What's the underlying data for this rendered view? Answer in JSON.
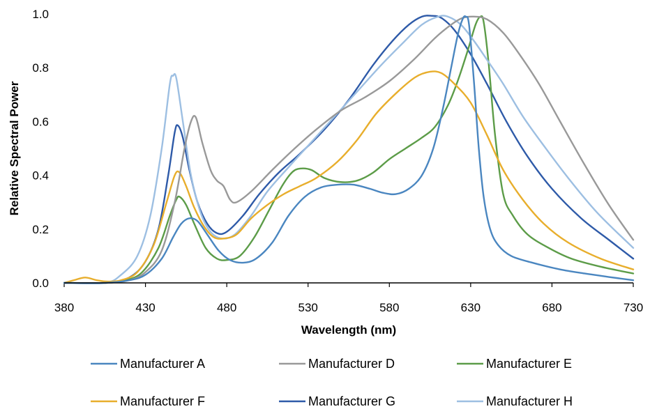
{
  "chart_data": {
    "type": "line",
    "xlabel": "Wavelength (nm)",
    "ylabel": "Relative Spectral Power",
    "xlim": [
      380,
      730
    ],
    "ylim": [
      0,
      1.0
    ],
    "x_ticks": [
      380,
      430,
      480,
      530,
      580,
      630,
      680,
      730
    ],
    "x_tick_labels": [
      "380",
      "430",
      "480",
      "530",
      "580",
      "630",
      "680",
      "730"
    ],
    "y_ticks": [
      0,
      0.2,
      0.4,
      0.6,
      0.8,
      1.0
    ],
    "y_tick_labels": [
      "0.0",
      "0.2",
      "0.4",
      "0.6",
      "0.8",
      "1.0"
    ],
    "grid": false,
    "legend_position": "bottom",
    "series": [
      {
        "name": "Manufacturer A",
        "color": "#4a86c0",
        "points": [
          [
            380,
            0
          ],
          [
            405,
            0
          ],
          [
            420,
            0.01
          ],
          [
            430,
            0.03
          ],
          [
            440,
            0.09
          ],
          [
            447,
            0.17
          ],
          [
            452,
            0.22
          ],
          [
            457,
            0.24
          ],
          [
            462,
            0.23
          ],
          [
            468,
            0.18
          ],
          [
            475,
            0.12
          ],
          [
            482,
            0.085
          ],
          [
            490,
            0.075
          ],
          [
            498,
            0.09
          ],
          [
            508,
            0.15
          ],
          [
            518,
            0.25
          ],
          [
            528,
            0.32
          ],
          [
            538,
            0.355
          ],
          [
            548,
            0.365
          ],
          [
            558,
            0.365
          ],
          [
            568,
            0.35
          ],
          [
            576,
            0.335
          ],
          [
            584,
            0.33
          ],
          [
            592,
            0.35
          ],
          [
            600,
            0.4
          ],
          [
            607,
            0.5
          ],
          [
            613,
            0.65
          ],
          [
            618,
            0.8
          ],
          [
            622,
            0.92
          ],
          [
            625,
            0.98
          ],
          [
            627,
            0.99
          ],
          [
            629,
            0.96
          ],
          [
            632,
            0.75
          ],
          [
            635,
            0.5
          ],
          [
            638,
            0.32
          ],
          [
            642,
            0.2
          ],
          [
            647,
            0.14
          ],
          [
            655,
            0.1
          ],
          [
            668,
            0.075
          ],
          [
            685,
            0.05
          ],
          [
            700,
            0.035
          ],
          [
            715,
            0.022
          ],
          [
            730,
            0.01
          ]
        ]
      },
      {
        "name": "Manufacturer D",
        "color": "#999999",
        "points": [
          [
            380,
            0
          ],
          [
            405,
            0
          ],
          [
            420,
            0.01
          ],
          [
            430,
            0.04
          ],
          [
            440,
            0.12
          ],
          [
            448,
            0.3
          ],
          [
            454,
            0.5
          ],
          [
            458,
            0.6
          ],
          [
            461,
            0.615
          ],
          [
            465,
            0.52
          ],
          [
            470,
            0.42
          ],
          [
            474,
            0.38
          ],
          [
            478,
            0.36
          ],
          [
            482,
            0.31
          ],
          [
            486,
            0.3
          ],
          [
            495,
            0.34
          ],
          [
            508,
            0.42
          ],
          [
            520,
            0.49
          ],
          [
            535,
            0.57
          ],
          [
            550,
            0.64
          ],
          [
            565,
            0.69
          ],
          [
            580,
            0.75
          ],
          [
            595,
            0.83
          ],
          [
            608,
            0.91
          ],
          [
            618,
            0.96
          ],
          [
            625,
            0.985
          ],
          [
            632,
            0.99
          ],
          [
            640,
            0.98
          ],
          [
            650,
            0.93
          ],
          [
            660,
            0.85
          ],
          [
            672,
            0.74
          ],
          [
            685,
            0.6
          ],
          [
            700,
            0.44
          ],
          [
            715,
            0.29
          ],
          [
            730,
            0.16
          ]
        ]
      },
      {
        "name": "Manufacturer E",
        "color": "#5c9c48",
        "points": [
          [
            380,
            0
          ],
          [
            405,
            0
          ],
          [
            418,
            0.01
          ],
          [
            428,
            0.04
          ],
          [
            438,
            0.13
          ],
          [
            445,
            0.25
          ],
          [
            449,
            0.31
          ],
          [
            451,
            0.32
          ],
          [
            455,
            0.29
          ],
          [
            460,
            0.22
          ],
          [
            467,
            0.13
          ],
          [
            474,
            0.09
          ],
          [
            480,
            0.085
          ],
          [
            488,
            0.1
          ],
          [
            497,
            0.17
          ],
          [
            506,
            0.27
          ],
          [
            514,
            0.36
          ],
          [
            520,
            0.41
          ],
          [
            525,
            0.425
          ],
          [
            532,
            0.42
          ],
          [
            540,
            0.39
          ],
          [
            550,
            0.375
          ],
          [
            560,
            0.38
          ],
          [
            570,
            0.41
          ],
          [
            580,
            0.46
          ],
          [
            590,
            0.5
          ],
          [
            600,
            0.54
          ],
          [
            608,
            0.58
          ],
          [
            616,
            0.66
          ],
          [
            622,
            0.75
          ],
          [
            628,
            0.86
          ],
          [
            633,
            0.96
          ],
          [
            636,
            0.99
          ],
          [
            638,
            0.97
          ],
          [
            641,
            0.82
          ],
          [
            645,
            0.55
          ],
          [
            650,
            0.33
          ],
          [
            656,
            0.25
          ],
          [
            665,
            0.18
          ],
          [
            678,
            0.13
          ],
          [
            692,
            0.09
          ],
          [
            710,
            0.06
          ],
          [
            730,
            0.035
          ]
        ]
      },
      {
        "name": "Manufacturer F",
        "color": "#e8ae2c",
        "points": [
          [
            380,
            0
          ],
          [
            386,
            0.01
          ],
          [
            393,
            0.02
          ],
          [
            400,
            0.01
          ],
          [
            407,
            0.005
          ],
          [
            415,
            0.01
          ],
          [
            425,
            0.04
          ],
          [
            435,
            0.14
          ],
          [
            443,
            0.3
          ],
          [
            448,
            0.4
          ],
          [
            451,
            0.41
          ],
          [
            455,
            0.36
          ],
          [
            460,
            0.28
          ],
          [
            466,
            0.21
          ],
          [
            472,
            0.17
          ],
          [
            478,
            0.165
          ],
          [
            486,
            0.18
          ],
          [
            495,
            0.24
          ],
          [
            505,
            0.29
          ],
          [
            515,
            0.33
          ],
          [
            525,
            0.36
          ],
          [
            535,
            0.39
          ],
          [
            548,
            0.45
          ],
          [
            560,
            0.53
          ],
          [
            572,
            0.63
          ],
          [
            585,
            0.71
          ],
          [
            596,
            0.765
          ],
          [
            605,
            0.785
          ],
          [
            612,
            0.78
          ],
          [
            620,
            0.74
          ],
          [
            630,
            0.67
          ],
          [
            640,
            0.55
          ],
          [
            650,
            0.42
          ],
          [
            662,
            0.31
          ],
          [
            675,
            0.22
          ],
          [
            690,
            0.15
          ],
          [
            710,
            0.09
          ],
          [
            730,
            0.05
          ]
        ]
      },
      {
        "name": "Manufacturer G",
        "color": "#2e5aa8",
        "points": [
          [
            380,
            0
          ],
          [
            405,
            0
          ],
          [
            420,
            0.02
          ],
          [
            430,
            0.08
          ],
          [
            438,
            0.2
          ],
          [
            444,
            0.4
          ],
          [
            448,
            0.56
          ],
          [
            450,
            0.585
          ],
          [
            453,
            0.54
          ],
          [
            457,
            0.42
          ],
          [
            462,
            0.3
          ],
          [
            468,
            0.22
          ],
          [
            474,
            0.185
          ],
          [
            480,
            0.19
          ],
          [
            490,
            0.25
          ],
          [
            500,
            0.33
          ],
          [
            512,
            0.41
          ],
          [
            525,
            0.48
          ],
          [
            540,
            0.57
          ],
          [
            555,
            0.68
          ],
          [
            570,
            0.81
          ],
          [
            582,
            0.9
          ],
          [
            592,
            0.96
          ],
          [
            600,
            0.99
          ],
          [
            606,
            0.993
          ],
          [
            612,
            0.985
          ],
          [
            620,
            0.94
          ],
          [
            630,
            0.85
          ],
          [
            640,
            0.74
          ],
          [
            652,
            0.6
          ],
          [
            665,
            0.47
          ],
          [
            680,
            0.35
          ],
          [
            698,
            0.24
          ],
          [
            715,
            0.16
          ],
          [
            730,
            0.09
          ]
        ]
      },
      {
        "name": "Manufacturer H",
        "color": "#9dbfe2",
        "points": [
          [
            380,
            0
          ],
          [
            405,
            0
          ],
          [
            415,
            0.03
          ],
          [
            425,
            0.1
          ],
          [
            433,
            0.25
          ],
          [
            440,
            0.5
          ],
          [
            445,
            0.74
          ],
          [
            447,
            0.77
          ],
          [
            449,
            0.76
          ],
          [
            453,
            0.6
          ],
          [
            458,
            0.4
          ],
          [
            464,
            0.26
          ],
          [
            470,
            0.19
          ],
          [
            477,
            0.165
          ],
          [
            485,
            0.18
          ],
          [
            495,
            0.25
          ],
          [
            505,
            0.34
          ],
          [
            518,
            0.43
          ],
          [
            530,
            0.51
          ],
          [
            545,
            0.61
          ],
          [
            560,
            0.71
          ],
          [
            575,
            0.81
          ],
          [
            588,
            0.89
          ],
          [
            600,
            0.96
          ],
          [
            610,
            0.99
          ],
          [
            616,
            0.99
          ],
          [
            624,
            0.96
          ],
          [
            632,
            0.9
          ],
          [
            640,
            0.83
          ],
          [
            650,
            0.74
          ],
          [
            662,
            0.62
          ],
          [
            675,
            0.51
          ],
          [
            690,
            0.39
          ],
          [
            708,
            0.26
          ],
          [
            730,
            0.13
          ]
        ]
      }
    ]
  }
}
